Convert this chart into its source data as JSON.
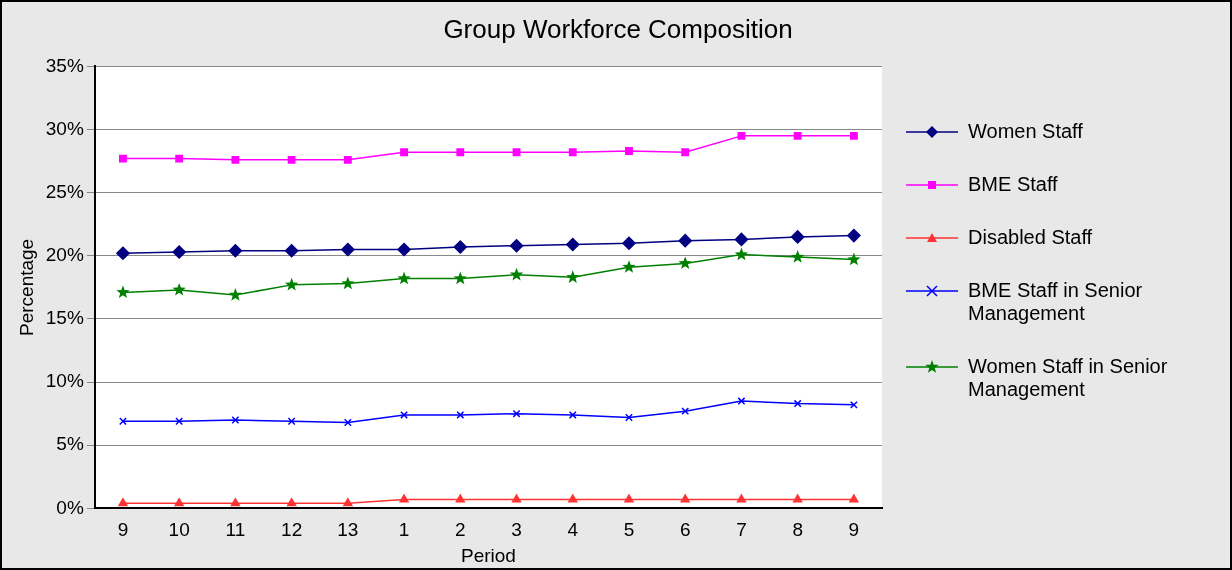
{
  "chart_data": {
    "type": "line",
    "title": "Group Workforce Composition",
    "xlabel": "Period",
    "ylabel": "Percentage",
    "categories": [
      "9",
      "10",
      "11",
      "12",
      "13",
      "1",
      "2",
      "3",
      "4",
      "5",
      "6",
      "7",
      "8",
      "9"
    ],
    "series": [
      {
        "name": "Women Staff",
        "color": "#000080",
        "marker": "diamond",
        "values": [
          20.2,
          20.3,
          20.4,
          20.4,
          20.5,
          20.5,
          20.7,
          20.8,
          20.9,
          21.0,
          21.2,
          21.3,
          21.5,
          21.6
        ]
      },
      {
        "name": "BME Staff",
        "color": "#ff00ff",
        "marker": "square",
        "values": [
          27.7,
          27.7,
          27.6,
          27.6,
          27.6,
          28.2,
          28.2,
          28.2,
          28.2,
          28.3,
          28.2,
          29.5,
          29.5,
          29.5
        ]
      },
      {
        "name": "Disabled Staff",
        "color": "#ff3333",
        "marker": "triangle",
        "values": [
          0.4,
          0.4,
          0.4,
          0.4,
          0.4,
          0.7,
          0.7,
          0.7,
          0.7,
          0.7,
          0.7,
          0.7,
          0.7,
          0.7
        ]
      },
      {
        "name": "BME Staff in Senior Management",
        "color": "#0000ff",
        "marker": "cross",
        "values": [
          6.9,
          6.9,
          7.0,
          6.9,
          6.8,
          7.4,
          7.4,
          7.5,
          7.4,
          7.2,
          7.7,
          8.5,
          8.3,
          8.2
        ]
      },
      {
        "name": "Women Staff in Senior Management",
        "color": "#008000",
        "marker": "star",
        "values": [
          17.1,
          17.3,
          16.9,
          17.7,
          17.8,
          18.2,
          18.2,
          18.5,
          18.3,
          19.1,
          19.4,
          20.1,
          19.9,
          19.7
        ]
      }
    ],
    "ylim": [
      0,
      35
    ],
    "yticks": [
      {
        "value": 0,
        "label": "0%"
      },
      {
        "value": 5,
        "label": "5%"
      },
      {
        "value": 10,
        "label": "10%"
      },
      {
        "value": 15,
        "label": "15%"
      },
      {
        "value": 20,
        "label": "20%"
      },
      {
        "value": 25,
        "label": "25%"
      },
      {
        "value": 30,
        "label": "30%"
      },
      {
        "value": 35,
        "label": "35%"
      }
    ],
    "grid": "y",
    "legend": "right",
    "line_style": "solid"
  }
}
